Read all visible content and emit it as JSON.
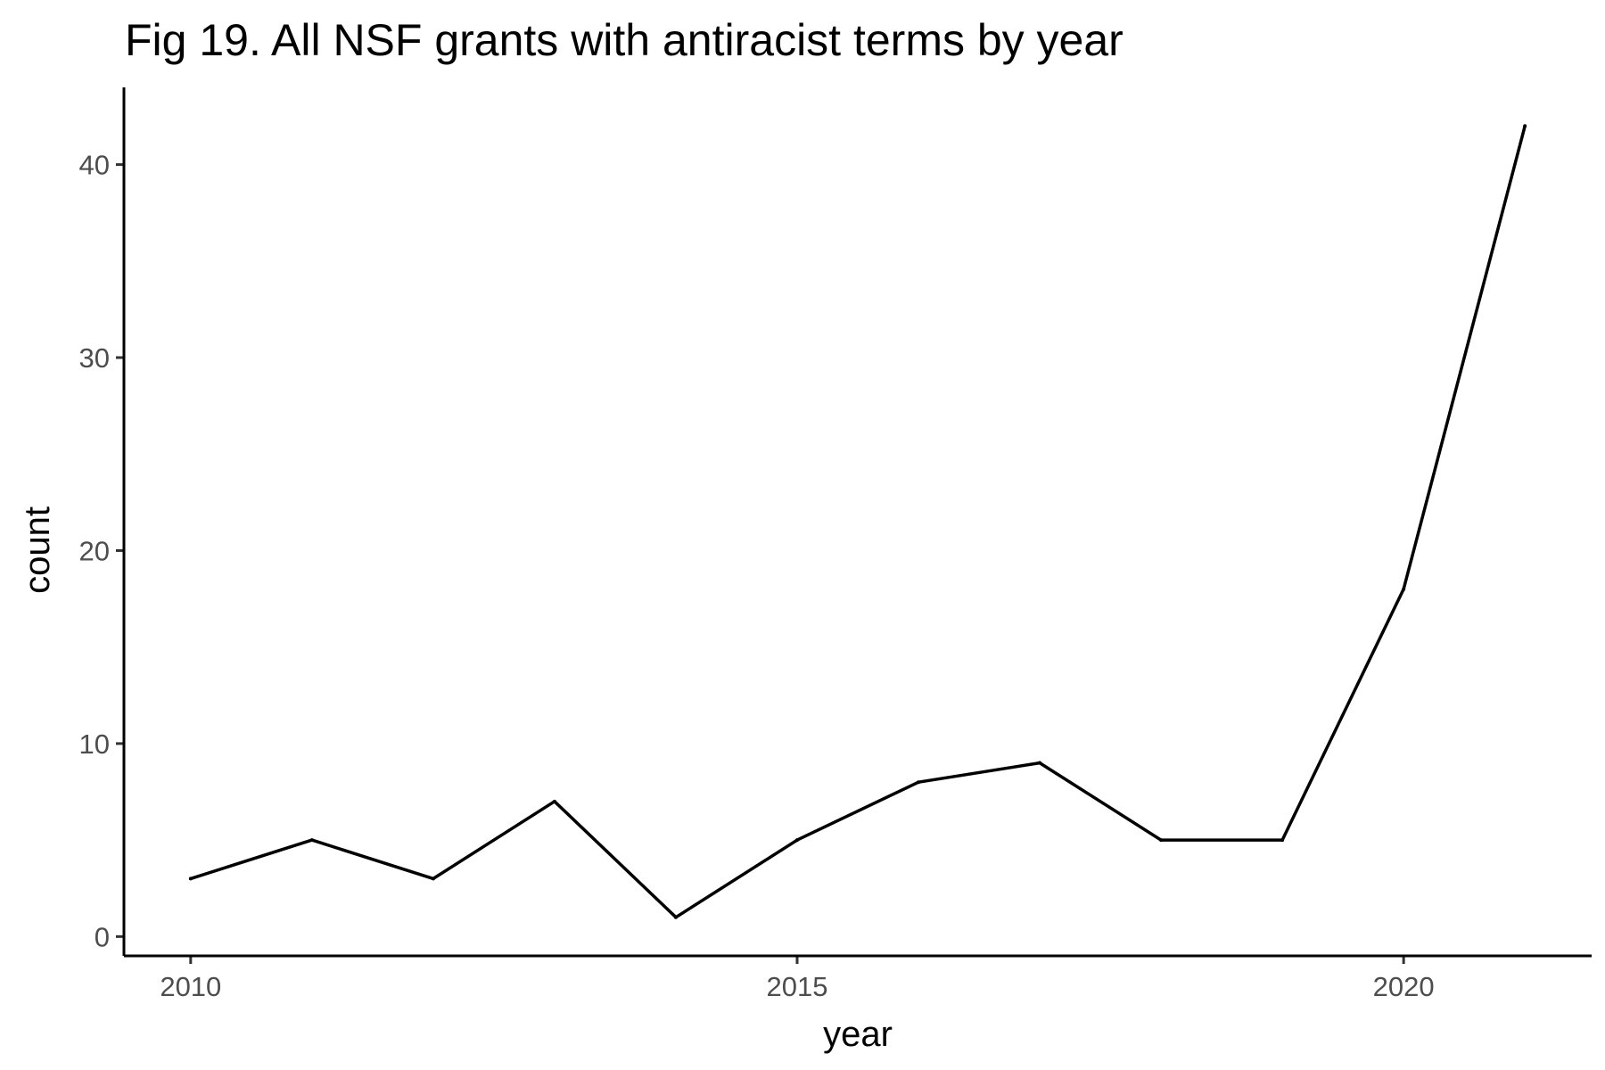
{
  "chart_data": {
    "type": "line",
    "title": "Fig 19. All NSF grants with antiracist terms by year",
    "xlabel": "year",
    "ylabel": "count",
    "x": [
      2010,
      2011,
      2012,
      2013,
      2014,
      2015,
      2016,
      2017,
      2018,
      2019,
      2020,
      2021
    ],
    "values": [
      3,
      5,
      3,
      7,
      1,
      5,
      8,
      9,
      5,
      5,
      18,
      42
    ],
    "x_ticks": [
      2010,
      2015,
      2020
    ],
    "x_tick_labels": [
      "2010",
      "2015",
      "2020"
    ],
    "y_ticks": [
      0,
      10,
      20,
      30,
      40
    ],
    "y_tick_labels": [
      "0",
      "10",
      "20",
      "30",
      "40"
    ],
    "xlim": [
      2009.45,
      2021.55
    ],
    "ylim": [
      -1,
      44
    ],
    "grid": false,
    "legend": "none",
    "line_color": "#000000"
  }
}
